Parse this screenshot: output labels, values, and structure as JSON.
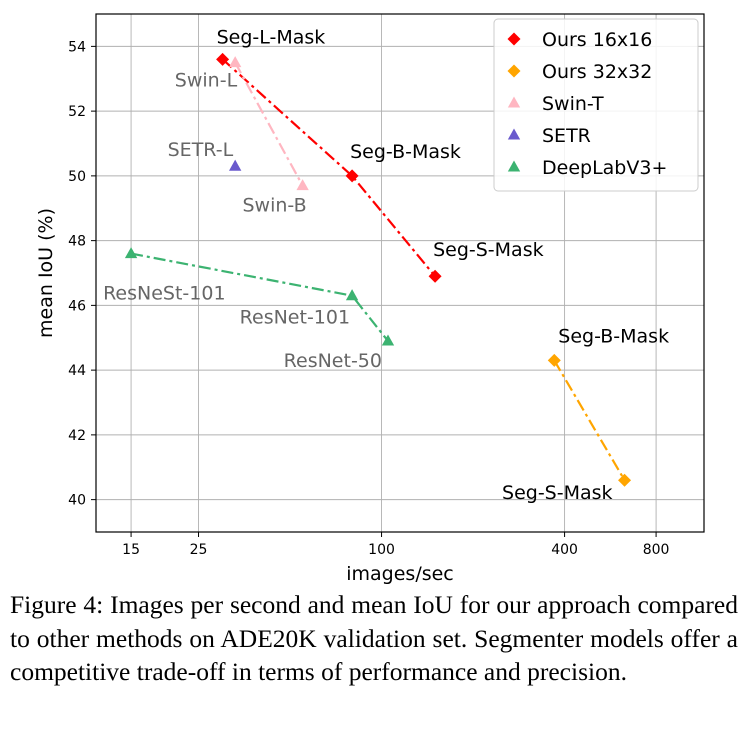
{
  "chart_data": {
    "type": "scatter",
    "xlabel": "images/sec",
    "ylabel": "mean IoU (%)",
    "xscale": "log",
    "xlim": [
      11.5,
      1150
    ],
    "ylim": [
      39,
      55
    ],
    "xticks": [
      15,
      25,
      100,
      400,
      800
    ],
    "xtick_labels": [
      "15",
      "25",
      "100",
      "400",
      "800"
    ],
    "yticks": [
      40,
      42,
      44,
      46,
      48,
      50,
      52,
      54
    ],
    "ytick_labels": [
      "40",
      "42",
      "44",
      "46",
      "48",
      "50",
      "52",
      "54"
    ],
    "grid": true,
    "legend_position": "top-right",
    "series": [
      {
        "name": "Ours 16x16",
        "color": "#ff0000",
        "marker": "diamond",
        "line": "dashdot",
        "points": [
          {
            "x": 30,
            "y": 53.6,
            "label": "Seg-L-Mask"
          },
          {
            "x": 80,
            "y": 50.0,
            "label": "Seg-B-Mask"
          },
          {
            "x": 150,
            "y": 46.9,
            "label": "Seg-S-Mask"
          }
        ]
      },
      {
        "name": "Ours 32x32",
        "color": "#ffa500",
        "marker": "diamond",
        "line": "dashdot",
        "points": [
          {
            "x": 370,
            "y": 44.3,
            "label": "Seg-B-Mask"
          },
          {
            "x": 630,
            "y": 40.6,
            "label": "Seg-S-Mask"
          }
        ]
      },
      {
        "name": "Swin-T",
        "color": "#ffb6c1",
        "marker": "triangle",
        "line": "dashdot",
        "points": [
          {
            "x": 33,
            "y": 53.5,
            "label": "Swin-L"
          },
          {
            "x": 55,
            "y": 49.7,
            "label": "Swin-B"
          }
        ]
      },
      {
        "name": "SETR",
        "color": "#6a5acd",
        "marker": "triangle",
        "line": "none",
        "points": [
          {
            "x": 33,
            "y": 50.3,
            "label": "SETR-L"
          }
        ]
      },
      {
        "name": "DeepLabV3+",
        "color": "#3cb371",
        "marker": "triangle",
        "line": "dashdot",
        "points": [
          {
            "x": 15,
            "y": 47.6,
            "label": "ResNeSt-101"
          },
          {
            "x": 80,
            "y": 46.3,
            "label": "ResNet-101"
          },
          {
            "x": 105,
            "y": 44.9,
            "label": "ResNet-50"
          }
        ]
      }
    ]
  },
  "caption": "Figure 4: Images per second and mean IoU for our approach compared to other methods on ADE20K validation set. Segmenter models offer a competitive trade-off in terms of performance and precision."
}
